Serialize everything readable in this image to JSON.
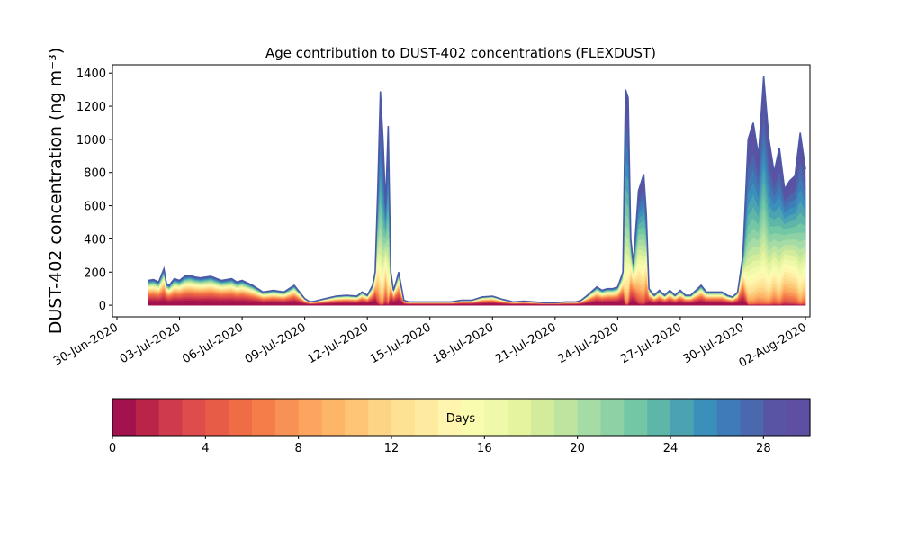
{
  "chart_data": {
    "type": "area",
    "stacked": true,
    "title": "Age contribution to DUST-402 concentrations (FLEXDUST)",
    "ylabel": "DUST-402 concentration (ng m⁻³)",
    "xlabel": "",
    "x_ticks": [
      "30-Jun-2020",
      "03-Jul-2020",
      "06-Jul-2020",
      "09-Jul-2020",
      "12-Jul-2020",
      "15-Jul-2020",
      "18-Jul-2020",
      "21-Jul-2020",
      "24-Jul-2020",
      "27-Jul-2020",
      "30-Jul-2020",
      "02-Aug-2020"
    ],
    "y_ticks": [
      0,
      200,
      400,
      600,
      800,
      1000,
      1200,
      1400
    ],
    "xlim": [
      "2020-06-30",
      "2020-08-02"
    ],
    "ylim": [
      -70,
      1450
    ],
    "grid": false,
    "total": {
      "dates": [
        "2020-07-01 12:00",
        "2020-07-01 18:00",
        "2020-07-02 00:00",
        "2020-07-02 06:00",
        "2020-07-02 09:00",
        "2020-07-02 12:00",
        "2020-07-02 18:00",
        "2020-07-03 00:00",
        "2020-07-03 06:00",
        "2020-07-03 12:00",
        "2020-07-03 18:00",
        "2020-07-04 00:00",
        "2020-07-04 12:00",
        "2020-07-05 00:00",
        "2020-07-05 12:00",
        "2020-07-05 18:00",
        "2020-07-06 00:00",
        "2020-07-06 12:00",
        "2020-07-07 00:00",
        "2020-07-07 12:00",
        "2020-07-08 00:00",
        "2020-07-08 12:00",
        "2020-07-09 00:00",
        "2020-07-09 06:00",
        "2020-07-09 12:00",
        "2020-07-10 00:00",
        "2020-07-10 12:00",
        "2020-07-11 00:00",
        "2020-07-11 12:00",
        "2020-07-11 18:00",
        "2020-07-12 00:00",
        "2020-07-12 06:00",
        "2020-07-12 09:00",
        "2020-07-12 12:00",
        "2020-07-12 15:00",
        "2020-07-12 18:00",
        "2020-07-12 21:00",
        "2020-07-13 00:00",
        "2020-07-13 03:00",
        "2020-07-13 06:00",
        "2020-07-13 09:00",
        "2020-07-13 12:00",
        "2020-07-13 18:00",
        "2020-07-14 00:00",
        "2020-07-14 12:00",
        "2020-07-15 00:00",
        "2020-07-15 12:00",
        "2020-07-16 00:00",
        "2020-07-16 12:00",
        "2020-07-17 00:00",
        "2020-07-17 12:00",
        "2020-07-18 00:00",
        "2020-07-18 12:00",
        "2020-07-19 00:00",
        "2020-07-19 12:00",
        "2020-07-20 00:00",
        "2020-07-20 12:00",
        "2020-07-21 00:00",
        "2020-07-21 12:00",
        "2020-07-22 00:00",
        "2020-07-22 06:00",
        "2020-07-22 12:00",
        "2020-07-23 00:00",
        "2020-07-23 06:00",
        "2020-07-23 12:00",
        "2020-07-23 18:00",
        "2020-07-24 00:00",
        "2020-07-24 06:00",
        "2020-07-24 09:00",
        "2020-07-24 12:00",
        "2020-07-24 15:00",
        "2020-07-24 18:00",
        "2020-07-25 00:00",
        "2020-07-25 06:00",
        "2020-07-25 09:00",
        "2020-07-25 12:00",
        "2020-07-25 18:00",
        "2020-07-26 00:00",
        "2020-07-26 06:00",
        "2020-07-26 12:00",
        "2020-07-26 18:00",
        "2020-07-27 00:00",
        "2020-07-27 06:00",
        "2020-07-27 12:00",
        "2020-07-28 00:00",
        "2020-07-28 06:00",
        "2020-07-28 12:00",
        "2020-07-29 00:00",
        "2020-07-29 06:00",
        "2020-07-29 12:00",
        "2020-07-29 18:00",
        "2020-07-30 00:00",
        "2020-07-30 06:00",
        "2020-07-30 12:00",
        "2020-07-30 18:00",
        "2020-07-31 00:00",
        "2020-07-31 06:00",
        "2020-07-31 12:00",
        "2020-07-31 18:00",
        "2020-08-01 00:00",
        "2020-08-01 06:00",
        "2020-08-01 12:00",
        "2020-08-01 18:00",
        "2020-08-02 00:00"
      ],
      "values": [
        150,
        155,
        140,
        220,
        130,
        120,
        160,
        150,
        175,
        180,
        170,
        165,
        175,
        150,
        160,
        140,
        150,
        120,
        80,
        90,
        80,
        120,
        40,
        20,
        25,
        40,
        55,
        60,
        55,
        80,
        60,
        120,
        200,
        700,
        1290,
        1000,
        600,
        1080,
        200,
        90,
        140,
        200,
        30,
        20,
        20,
        20,
        20,
        20,
        30,
        30,
        50,
        55,
        35,
        20,
        25,
        20,
        15,
        15,
        20,
        20,
        30,
        55,
        110,
        90,
        100,
        100,
        110,
        200,
        1300,
        1250,
        400,
        250,
        690,
        790,
        550,
        100,
        60,
        90,
        60,
        90,
        60,
        90,
        60,
        60,
        120,
        80,
        80,
        80,
        60,
        50,
        80,
        300,
        1000,
        1100,
        900,
        1380,
        1000,
        800,
        950,
        700,
        750,
        780,
        1040,
        820
      ]
    },
    "age_bins": {
      "unit": "Days",
      "range": [
        0,
        30
      ],
      "step": 1,
      "ticks": [
        0,
        4,
        8,
        12,
        16,
        20,
        24,
        28
      ],
      "colors": [
        "#a1124e",
        "#bb2449",
        "#cf3a4c",
        "#de4d4b",
        "#e75c47",
        "#f06c45",
        "#f57d4a",
        "#f89155",
        "#fba55f",
        "#fdb567",
        "#fdc575",
        "#fdd385",
        "#fee192",
        "#feeb9f",
        "#fff5ae",
        "#f9fbae",
        "#f0f8a9",
        "#e4f49f",
        "#d2ec9c",
        "#bde5a0",
        "#a5dba4",
        "#8dd1a4",
        "#74c7a5",
        "#5eb6a9",
        "#4ba3b1",
        "#3a8fbb",
        "#3f7bb6",
        "#4a68ad",
        "#5954a4",
        "#5e4fa2"
      ]
    }
  }
}
